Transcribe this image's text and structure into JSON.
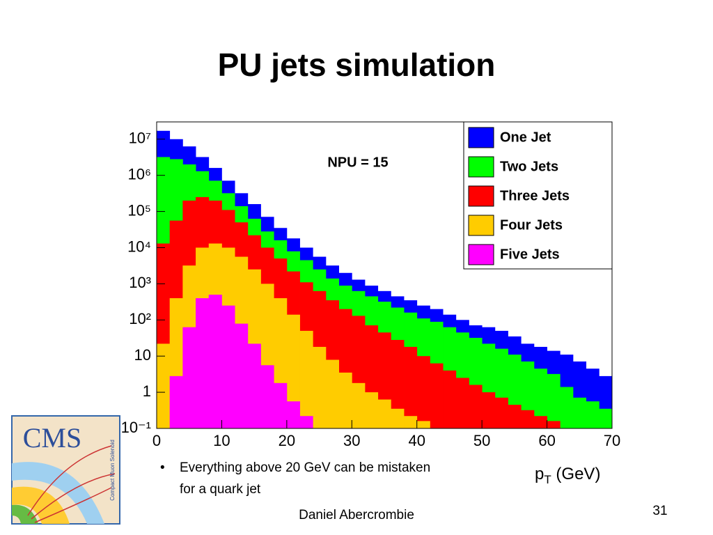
{
  "slide_title": "PU jets simulation",
  "bullets": [
    "Everything above 20 GeV can be mistaken",
    "for a quark jet"
  ],
  "author": "Daniel Abercrombie",
  "page_number": "31",
  "logo": {
    "text": "CMS",
    "subtext": "Compact Muon Solenoid"
  },
  "chart_data": {
    "type": "histogram",
    "annotation": "NPU = 15",
    "x_label": {
      "base": "p",
      "sub": "T",
      "unit": "(GeV)"
    },
    "bins": [
      0,
      2,
      4,
      6,
      8,
      10,
      12,
      14,
      16,
      18,
      20,
      22,
      24,
      26,
      28,
      30,
      32,
      34,
      36,
      38,
      40,
      42,
      44,
      46,
      48,
      50,
      52,
      54,
      56,
      58,
      60,
      62,
      64,
      66,
      68,
      70
    ],
    "series": [
      {
        "name": "One Jet",
        "color": "#0000ff",
        "values": [
          17000000,
          10000000,
          6300000,
          3200000,
          1600000,
          710000,
          320000,
          160000,
          71000,
          35000,
          18000,
          10000,
          5600,
          3200,
          2000,
          1300,
          890,
          630,
          450,
          350,
          250,
          200,
          140,
          100,
          71,
          63,
          50,
          35,
          22,
          18,
          14,
          11,
          7.1,
          4.5,
          2.8
        ]
      },
      {
        "name": "Two Jets",
        "color": "#00ff00",
        "values": [
          3200000,
          2800000,
          2000000,
          1300000,
          710000,
          320000,
          140000,
          63000,
          28000,
          16000,
          7900,
          4500,
          2500,
          1400,
          890,
          630,
          450,
          320,
          220,
          160,
          110,
          89,
          63,
          45,
          32,
          22,
          16,
          11,
          7.1,
          4.5,
          3.2,
          1.4,
          0.71,
          0.56,
          0.35
        ]
      },
      {
        "name": "Three Jets",
        "color": "#ff0000",
        "values": [
          13000,
          56000,
          200000,
          250000,
          200000,
          110000,
          50000,
          22000,
          10000,
          5000,
          2200,
          1100,
          630,
          350,
          200,
          130,
          71,
          45,
          28,
          18,
          10,
          6.3,
          4,
          2.5,
          1.6,
          1,
          0.71,
          0.45,
          0.32,
          0.22,
          0.16,
          0,
          0,
          0,
          0
        ]
      },
      {
        "name": "Four Jets",
        "color": "#ffcc00",
        "values": [
          22,
          400,
          3200,
          10000,
          13000,
          10000,
          5600,
          2500,
          1000,
          400,
          140,
          50,
          18,
          7.9,
          3.5,
          1.8,
          1,
          0.63,
          0.35,
          0.22,
          0.16,
          0,
          0,
          0,
          0,
          0,
          0,
          0,
          0,
          0,
          0,
          0,
          0,
          0,
          0
        ]
      },
      {
        "name": "Five Jets",
        "color": "#ff00ff",
        "values": [
          0,
          2.8,
          63,
          400,
          500,
          250,
          79,
          22,
          5.6,
          1.8,
          0.56,
          0.22,
          0,
          0,
          0,
          0,
          0,
          0,
          0,
          0,
          0,
          0,
          0,
          0,
          0,
          0,
          0,
          0,
          0,
          0,
          0,
          0,
          0,
          0,
          0
        ]
      }
    ],
    "xlim": [
      0,
      70
    ],
    "xticks": [
      0,
      10,
      20,
      30,
      40,
      50,
      60,
      70
    ],
    "ylim": [
      0.1,
      30000000
    ],
    "log_y": true,
    "yticks": [
      {
        "value": 0.1,
        "label": "10⁻¹"
      },
      1,
      10,
      {
        "value": 100,
        "label": "10²"
      },
      {
        "value": 1000,
        "label": "10³"
      },
      {
        "value": 10000,
        "label": "10⁴"
      },
      {
        "value": 100000,
        "label": "10⁵"
      },
      {
        "value": 1000000,
        "label": "10⁶"
      },
      {
        "value": 10000000,
        "label": "10⁷"
      }
    ],
    "legend": "upper right"
  }
}
